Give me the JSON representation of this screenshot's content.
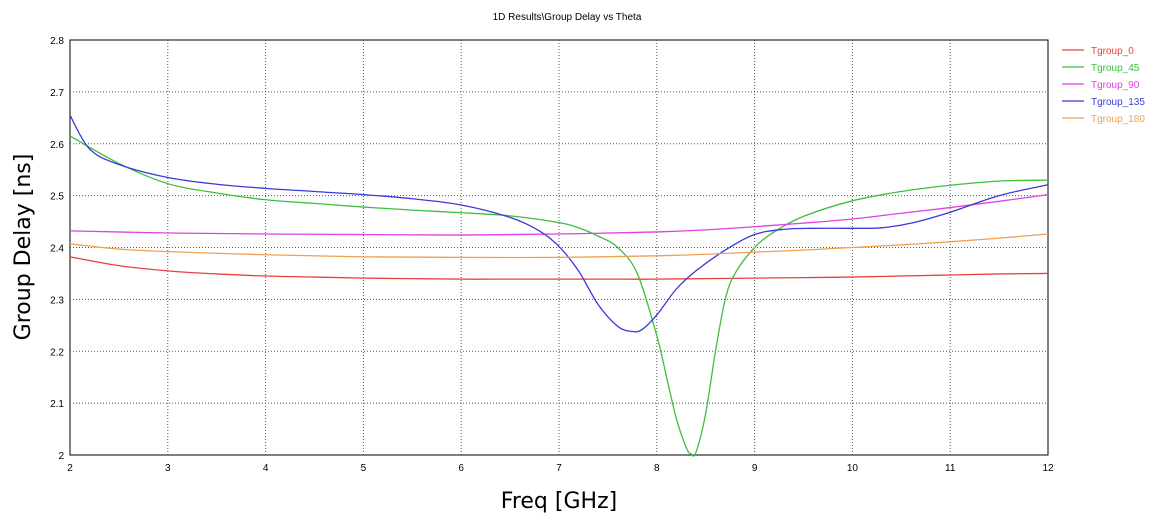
{
  "chart_data": {
    "type": "line",
    "title": "1D Results\\Group Delay vs Theta",
    "xlabel": "Freq [GHz]",
    "ylabel": "Group Delay [ns]",
    "xlim": [
      2,
      12
    ],
    "ylim": [
      2,
      2.8
    ],
    "xticks": [
      2,
      3,
      4,
      5,
      6,
      7,
      8,
      9,
      10,
      11,
      12
    ],
    "yticks": [
      2,
      2.1,
      2.2,
      2.3,
      2.4,
      2.5,
      2.6,
      2.7,
      2.8
    ],
    "xtick_labels": [
      "2",
      "3",
      "4",
      "5",
      "6",
      "7",
      "8",
      "9",
      "10",
      "11",
      "12"
    ],
    "ytick_labels": [
      "2",
      "2.1",
      "2.2",
      "2.3",
      "2.4",
      "2.5",
      "2.6",
      "2.7",
      "2.8"
    ],
    "grid": true,
    "legend_position": "right",
    "series": [
      {
        "name": "Tgroup_0",
        "color": "#e8413c",
        "x": [
          2,
          2.5,
          3,
          3.5,
          4,
          4.5,
          5,
          5.5,
          6,
          6.5,
          7,
          7.5,
          8,
          8.5,
          9,
          9.5,
          10,
          10.5,
          11,
          11.5,
          12
        ],
        "y": [
          2.382,
          2.365,
          2.355,
          2.349,
          2.345,
          2.343,
          2.341,
          2.34,
          2.339,
          2.339,
          2.339,
          2.339,
          2.339,
          2.34,
          2.341,
          2.342,
          2.343,
          2.345,
          2.347,
          2.349,
          2.35
        ]
      },
      {
        "name": "Tgroup_45",
        "color": "#3dbf3d",
        "x": [
          2,
          2.5,
          3,
          3.5,
          4,
          4.5,
          5,
          5.5,
          6,
          6.5,
          7,
          7.2,
          7.4,
          7.6,
          7.8,
          8.0,
          8.1,
          8.2,
          8.3,
          8.35,
          8.4,
          8.5,
          8.6,
          8.7,
          8.8,
          9.0,
          9.2,
          9.5,
          10,
          10.5,
          11,
          11.5,
          12
        ],
        "y": [
          2.615,
          2.562,
          2.523,
          2.505,
          2.492,
          2.485,
          2.478,
          2.472,
          2.467,
          2.461,
          2.448,
          2.438,
          2.422,
          2.4,
          2.35,
          2.23,
          2.15,
          2.07,
          2.015,
          2.002,
          2.005,
          2.08,
          2.2,
          2.3,
          2.35,
          2.4,
          2.43,
          2.46,
          2.49,
          2.508,
          2.52,
          2.528,
          2.53
        ]
      },
      {
        "name": "Tgroup_90",
        "color": "#e040e0",
        "x": [
          2,
          3,
          4,
          5,
          6,
          7,
          8,
          8.5,
          9,
          9.5,
          10,
          10.5,
          11,
          11.5,
          12
        ],
        "y": [
          2.432,
          2.428,
          2.426,
          2.425,
          2.424,
          2.426,
          2.43,
          2.434,
          2.44,
          2.447,
          2.455,
          2.466,
          2.477,
          2.489,
          2.502
        ]
      },
      {
        "name": "Tgroup_135",
        "color": "#3a3ad8",
        "x": [
          2,
          2.2,
          2.5,
          3,
          3.5,
          4,
          4.5,
          5,
          5.5,
          6,
          6.5,
          6.8,
          7,
          7.2,
          7.4,
          7.6,
          7.75,
          7.85,
          8.0,
          8.2,
          8.4,
          8.7,
          9.0,
          9.3,
          9.6,
          10,
          10.3,
          10.6,
          11,
          11.5,
          12
        ],
        "y": [
          2.655,
          2.59,
          2.56,
          2.535,
          2.522,
          2.514,
          2.508,
          2.502,
          2.494,
          2.482,
          2.458,
          2.432,
          2.402,
          2.355,
          2.29,
          2.248,
          2.238,
          2.242,
          2.27,
          2.32,
          2.355,
          2.395,
          2.425,
          2.435,
          2.437,
          2.437,
          2.438,
          2.447,
          2.468,
          2.5,
          2.521
        ]
      },
      {
        "name": "Tgroup_180",
        "color": "#f0a050",
        "x": [
          2,
          2.5,
          3,
          4,
          5,
          6,
          7,
          8,
          8.5,
          9,
          9.5,
          10,
          10.5,
          11,
          11.5,
          12
        ],
        "y": [
          2.407,
          2.397,
          2.392,
          2.386,
          2.382,
          2.381,
          2.381,
          2.384,
          2.387,
          2.391,
          2.395,
          2.4,
          2.405,
          2.411,
          2.418,
          2.426
        ]
      }
    ]
  }
}
